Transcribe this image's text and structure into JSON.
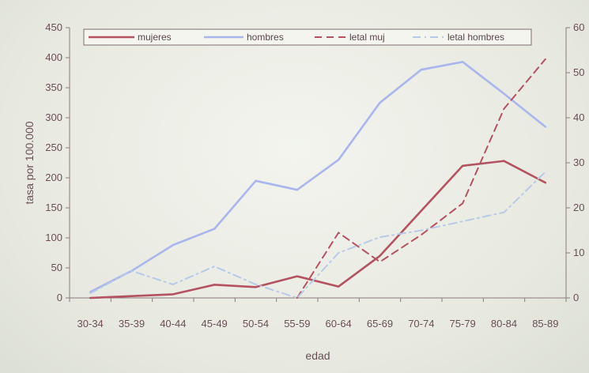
{
  "chart_data": {
    "type": "line",
    "categories": [
      "30-34",
      "35-39",
      "40-44",
      "45-49",
      "50-54",
      "55-59",
      "60-64",
      "65-69",
      "70-74",
      "75-79",
      "80-84",
      "85-89"
    ],
    "xlabel": "edad",
    "ylabel": "tasa por 100.000",
    "ylim": [
      0,
      450
    ],
    "y2lim": [
      0,
      60
    ],
    "y_ticks": [
      "0",
      "50",
      "100",
      "150",
      "200",
      "250",
      "300",
      "350",
      "400",
      "450"
    ],
    "y2_ticks": [
      "0",
      "10",
      "20",
      "30",
      "40",
      "50",
      "60"
    ],
    "legend_position": "top",
    "series": [
      {
        "name": "mujeres",
        "axis": "left",
        "style": "solid",
        "color": "#b5525f",
        "values": [
          0,
          3,
          6,
          22,
          18,
          36,
          19,
          70,
          145,
          220,
          228,
          192
        ]
      },
      {
        "name": "hombres",
        "axis": "left",
        "style": "solid",
        "color": "#a9b6ee",
        "values": [
          10,
          45,
          88,
          115,
          195,
          180,
          230,
          325,
          380,
          393,
          340,
          285
        ]
      },
      {
        "name": "letal muj",
        "axis": "right",
        "style": "dashed",
        "color": "#b5525f",
        "values": [
          null,
          null,
          null,
          null,
          null,
          0,
          14.5,
          8,
          14,
          21,
          42,
          53
        ]
      },
      {
        "name": "letal hombres",
        "axis": "right",
        "style": "dashdot",
        "color": "#b8c9e8",
        "values": [
          1,
          6,
          3,
          7,
          3,
          0,
          10,
          13.5,
          15,
          17,
          19,
          28
        ]
      }
    ]
  }
}
